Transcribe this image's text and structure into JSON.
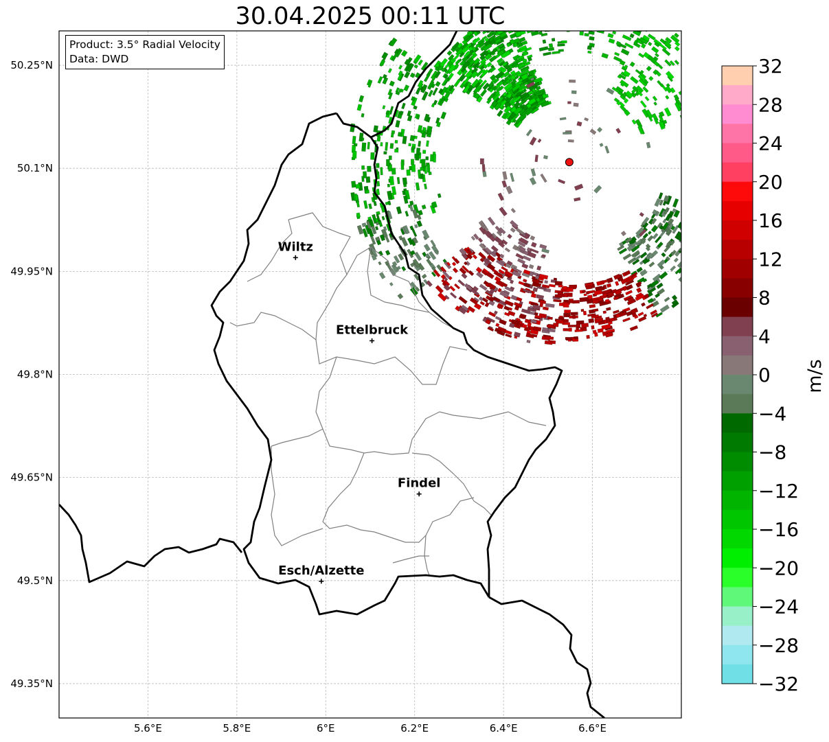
{
  "title": "30.04.2025 00:11 UTC",
  "info": {
    "product": "Product: 3.5° Radial Velocity",
    "data": "Data: DWD"
  },
  "axes": {
    "lat_ticks": [
      "50.25°N",
      "50.1°N",
      "49.95°N",
      "49.8°N",
      "49.65°N",
      "49.5°N",
      "49.35°N"
    ],
    "lon_ticks": [
      "5.6°E",
      "5.8°E",
      "6°E",
      "6.2°E",
      "6.4°E",
      "6.6°E"
    ],
    "lat_values": [
      50.25,
      50.1,
      49.95,
      49.8,
      49.65,
      49.5,
      49.35
    ],
    "lon_values": [
      5.6,
      5.8,
      6.0,
      6.2,
      6.4,
      6.6
    ],
    "gridlines": true
  },
  "cities": [
    {
      "name": "Wiltz",
      "lon": 5.932,
      "lat": 49.97
    },
    {
      "name": "Ettelbruck",
      "lon": 6.104,
      "lat": 49.849
    },
    {
      "name": "Findel",
      "lon": 6.21,
      "lat": 49.626
    },
    {
      "name": "Esch/Alzette",
      "lon": 5.99,
      "lat": 49.499
    }
  ],
  "radar_site": {
    "lon": 6.548,
    "lat": 50.109,
    "color": "#ee1111"
  },
  "colorbar": {
    "label": "m/s",
    "ticks": [
      "32",
      "28",
      "24",
      "20",
      "16",
      "12",
      "8",
      "4",
      "0",
      "−4",
      "−8",
      "−12",
      "−16",
      "−20",
      "−24",
      "−28",
      "−32"
    ],
    "range": [
      -32,
      32
    ],
    "colors_top_to_bottom": [
      "#ffcfb0",
      "#ffaac8",
      "#ff8cd0",
      "#ff74a6",
      "#ff5a88",
      "#ff4060",
      "#ff0a0a",
      "#e60000",
      "#d00000",
      "#b80000",
      "#a00000",
      "#880000",
      "#6a0000",
      "#804050",
      "#886070",
      "#887878",
      "#6a8870",
      "#5a7a58",
      "#006a00",
      "#007a00",
      "#008c00",
      "#00a000",
      "#00b400",
      "#00c600",
      "#00d800",
      "#00ee00",
      "#2aff2a",
      "#60f878",
      "#98f0c8",
      "#b0eaf0",
      "#90e6ee",
      "#70e0e6"
    ]
  },
  "chart_data": {
    "type": "other",
    "title": "30.04.2025 00:11 UTC",
    "colorbar_label": "m/s",
    "colorbar_range": [
      -32,
      32
    ],
    "lon_range": [
      5.4,
      6.8
    ],
    "lat_range": [
      49.3,
      50.3
    ]
  }
}
